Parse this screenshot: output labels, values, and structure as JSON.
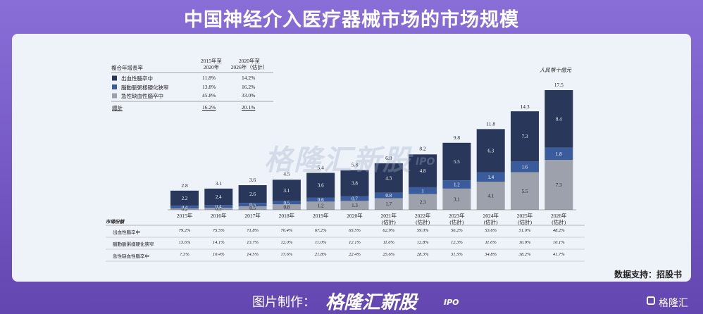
{
  "title": "中国神经介入医疗器械市场的市场规模",
  "chart_data": {
    "type": "bar",
    "stacked": true,
    "unit": "人民幣十億元",
    "categories": [
      "2015年",
      "2016年",
      "2017年",
      "2018年",
      "2019年",
      "2020年",
      "2021年\n(估計)",
      "2022年\n(估計)",
      "2023年\n(估計)",
      "2024年\n(估計)",
      "2025年\n(估計)",
      "2026年\n(估計)"
    ],
    "series": [
      {
        "name": "出血性腦卒中",
        "color": "#28375a",
        "values": [
          2.2,
          2.4,
          2.6,
          3.1,
          3.6,
          3.8,
          4.3,
          4.8,
          5.5,
          6.3,
          7.3,
          8.4
        ]
      },
      {
        "name": "腦動脈粥樣硬化狹窄",
        "color": "#3b5c9c",
        "values": [
          0.4,
          0.4,
          0.5,
          0.5,
          0.6,
          0.7,
          0.8,
          1.0,
          1.2,
          1.4,
          1.6,
          1.8
        ]
      },
      {
        "name": "急性缺血性腦卒中",
        "color": "#9ca1ab",
        "values": [
          0.2,
          0.3,
          0.5,
          0.8,
          1.2,
          1.3,
          1.7,
          2.3,
          3.1,
          4.1,
          5.5,
          7.3
        ]
      }
    ],
    "totals": [
      2.8,
      3.1,
      3.6,
      4.5,
      5.4,
      5.8,
      6.8,
      8.2,
      9.8,
      11.8,
      14.3,
      17.5
    ],
    "cagr_table": {
      "header": [
        "複合年增長率",
        "2015年至\n2020年",
        "2020年至\n2026年（估計）"
      ],
      "rows": [
        [
          "11.8%",
          "14.2%"
        ],
        [
          "13.8%",
          "16.2%"
        ],
        [
          "45.8%",
          "33.0%"
        ]
      ],
      "total": [
        "總計",
        "16.2%",
        "20.1%"
      ]
    },
    "share_table": {
      "title": "市場份額",
      "rows": [
        [
          "79.2%",
          "75.5%",
          "71.8%",
          "70.4%",
          "67.2%",
          "65.5%",
          "62.9%",
          "59.0%",
          "56.2%",
          "53.6%",
          "51.0%",
          "48.2%"
        ],
        [
          "13.6%",
          "14.1%",
          "13.7%",
          "12.0%",
          "11.0%",
          "12.1%",
          "11.6%",
          "12.8%",
          "12.3%",
          "11.6%",
          "10.9%",
          "10.1%"
        ],
        [
          "7.3%",
          "10.4%",
          "14.5%",
          "17.6%",
          "21.8%",
          "22.4%",
          "25.6%",
          "28.3%",
          "31.5%",
          "34.8%",
          "38.2%",
          "41.7%"
        ]
      ]
    }
  },
  "watermark": "格隆汇新股",
  "watermark_suffix": "IPO",
  "source": "数据支持：招股书",
  "footer": "图片制作：",
  "brand": "格隆汇新股",
  "brand_suffix": "IPO",
  "logo": "格隆汇"
}
